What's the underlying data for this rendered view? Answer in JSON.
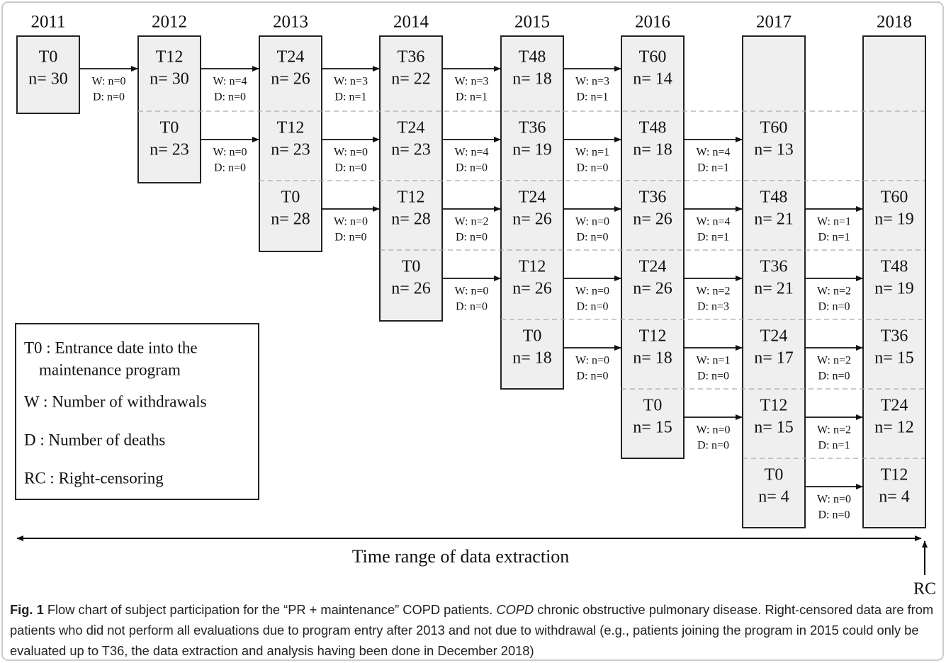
{
  "years": [
    "2011",
    "2012",
    "2013",
    "2014",
    "2015",
    "2016",
    "2017",
    "2018"
  ],
  "cohorts": [
    {
      "cells": [
        {
          "label": "T0",
          "n": "n= 30"
        },
        {
          "label": "T12",
          "n": "n= 30"
        },
        {
          "label": "T24",
          "n": "n= 26"
        },
        {
          "label": "T36",
          "n": "n= 22"
        },
        {
          "label": "T48",
          "n": "n= 18"
        },
        {
          "label": "T60",
          "n": "n= 14"
        }
      ],
      "transitions": [
        {
          "w": "W: n=0",
          "d": "D: n=0"
        },
        {
          "w": "W: n=4",
          "d": "D: n=0"
        },
        {
          "w": "W: n=3",
          "d": "D: n=1"
        },
        {
          "w": "W: n=3",
          "d": "D: n=1"
        },
        {
          "w": "W: n=3",
          "d": "D: n=1"
        }
      ]
    },
    {
      "cells": [
        {
          "label": "T0",
          "n": "n= 23"
        },
        {
          "label": "T12",
          "n": "n= 23"
        },
        {
          "label": "T24",
          "n": "n= 23"
        },
        {
          "label": "T36",
          "n": "n= 19"
        },
        {
          "label": "T48",
          "n": "n= 18"
        },
        {
          "label": "T60",
          "n": "n= 13"
        }
      ],
      "transitions": [
        {
          "w": "W: n=0",
          "d": "D: n=0"
        },
        {
          "w": "W: n=0",
          "d": "D: n=0"
        },
        {
          "w": "W: n=4",
          "d": "D: n=0"
        },
        {
          "w": "W: n=1",
          "d": "D: n=0"
        },
        {
          "w": "W: n=4",
          "d": "D: n=1"
        }
      ]
    },
    {
      "cells": [
        {
          "label": "T0",
          "n": "n= 28"
        },
        {
          "label": "T12",
          "n": "n= 28"
        },
        {
          "label": "T24",
          "n": "n= 26"
        },
        {
          "label": "T36",
          "n": "n= 26"
        },
        {
          "label": "T48",
          "n": "n= 21"
        },
        {
          "label": "T60",
          "n": "n= 19"
        }
      ],
      "transitions": [
        {
          "w": "W: n=0",
          "d": "D: n=0"
        },
        {
          "w": "W: n=2",
          "d": "D: n=0"
        },
        {
          "w": "W: n=0",
          "d": "D: n=0"
        },
        {
          "w": "W: n=4",
          "d": "D: n=1"
        },
        {
          "w": "W: n=1",
          "d": "D: n=1"
        }
      ]
    },
    {
      "cells": [
        {
          "label": "T0",
          "n": "n= 26"
        },
        {
          "label": "T12",
          "n": "n= 26"
        },
        {
          "label": "T24",
          "n": "n= 26"
        },
        {
          "label": "T36",
          "n": "n= 21"
        },
        {
          "label": "T48",
          "n": "n= 19"
        }
      ],
      "transitions": [
        {
          "w": "W: n=0",
          "d": "D: n=0"
        },
        {
          "w": "W: n=0",
          "d": "D: n=0"
        },
        {
          "w": "W: n=2",
          "d": "D: n=3"
        },
        {
          "w": "W: n=2",
          "d": "D: n=0"
        }
      ]
    },
    {
      "cells": [
        {
          "label": "T0",
          "n": "n= 18"
        },
        {
          "label": "T12",
          "n": "n= 18"
        },
        {
          "label": "T24",
          "n": "n= 17"
        },
        {
          "label": "T36",
          "n": "n= 15"
        }
      ],
      "transitions": [
        {
          "w": "W: n=0",
          "d": "D: n=0"
        },
        {
          "w": "W: n=1",
          "d": "D: n=0"
        },
        {
          "w": "W: n=2",
          "d": "D: n=0"
        }
      ]
    },
    {
      "cells": [
        {
          "label": "T0",
          "n": "n= 15"
        },
        {
          "label": "T12",
          "n": "n= 15"
        },
        {
          "label": "T24",
          "n": "n= 12"
        }
      ],
      "transitions": [
        {
          "w": "W: n=0",
          "d": "D: n=0"
        },
        {
          "w": "W: n=2",
          "d": "D: n=1"
        }
      ]
    },
    {
      "cells": [
        {
          "label": "T0",
          "n": "n= 4"
        },
        {
          "label": "T12",
          "n": "n= 4"
        }
      ],
      "transitions": [
        {
          "w": "W: n=0",
          "d": "D: n=0"
        }
      ]
    }
  ],
  "legend": [
    "T0 : Entrance date into the",
    "maintenance program",
    "W : Number of withdrawals",
    "D : Number of deaths",
    "RC : Right-censoring"
  ],
  "axis_label": "Time range of data extraction",
  "rc_label": "RC",
  "caption": {
    "label": "Fig. 1",
    "text1": " Flow chart of subject participation for the “PR + maintenance” COPD patients. ",
    "abbr": "COPD",
    "text2": " chronic obstructive pulmonary disease. Right-censored data are from patients who did not perform all evaluations due to program entry after 2013 and not due to withdrawal (e.g., patients joining the program in 2015 could only be evaluated up to T36, the data extraction and analysis having been done in December 2018)"
  }
}
